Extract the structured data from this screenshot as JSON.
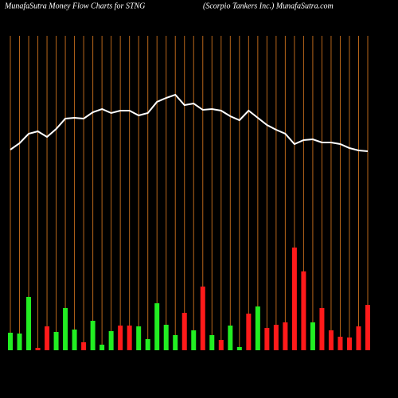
{
  "chart_data": {
    "type": "money-flow",
    "title": "MunafaSutra  Money Flow  Charts for STNG",
    "subtitle": "(Scorpio  Tankers Inc.) MunafaSutra.com",
    "ylim": [
      0,
      440
    ],
    "bars": {
      "values": [
        22,
        21,
        67,
        3,
        30,
        23,
        53,
        26,
        10,
        37,
        7,
        24,
        31,
        31,
        30,
        14,
        59,
        32,
        19,
        47,
        25,
        80,
        19,
        13,
        31,
        4,
        46,
        55,
        28,
        32,
        35,
        129,
        99,
        35,
        53,
        25,
        17,
        16,
        30,
        57
      ],
      "colors": [
        "#22ee22",
        "#22ee22",
        "#22ee22",
        "#ff1a1a",
        "#ff1a1a",
        "#22ee22",
        "#22ee22",
        "#22ee22",
        "#ff1a1a",
        "#22ee22",
        "#22ee22",
        "#22ee22",
        "#ff1a1a",
        "#ff1a1a",
        "#22ee22",
        "#22ee22",
        "#22ee22",
        "#22ee22",
        "#22ee22",
        "#ff1a1a",
        "#22ee22",
        "#ff1a1a",
        "#22ee22",
        "#ff1a1a",
        "#22ee22",
        "#22ee22",
        "#ff1a1a",
        "#22ee22",
        "#ff1a1a",
        "#ff1a1a",
        "#ff1a1a",
        "#ff1a1a",
        "#ff1a1a",
        "#22ee22",
        "#ff1a1a",
        "#ff1a1a",
        "#ff1a1a",
        "#ff1a1a",
        "#ff1a1a",
        "#ff1a1a"
      ]
    },
    "line": {
      "color": "#ffffff",
      "values": [
        252,
        260,
        272,
        275,
        268,
        278,
        291,
        292,
        291,
        299,
        303,
        298,
        301,
        301,
        295,
        298,
        312,
        317,
        321,
        308,
        310,
        302,
        303,
        301,
        294,
        289,
        301,
        292,
        283,
        277,
        272,
        259,
        264,
        265,
        261,
        261,
        259,
        254,
        251,
        250
      ]
    },
    "grid_color": "#b8661a"
  }
}
